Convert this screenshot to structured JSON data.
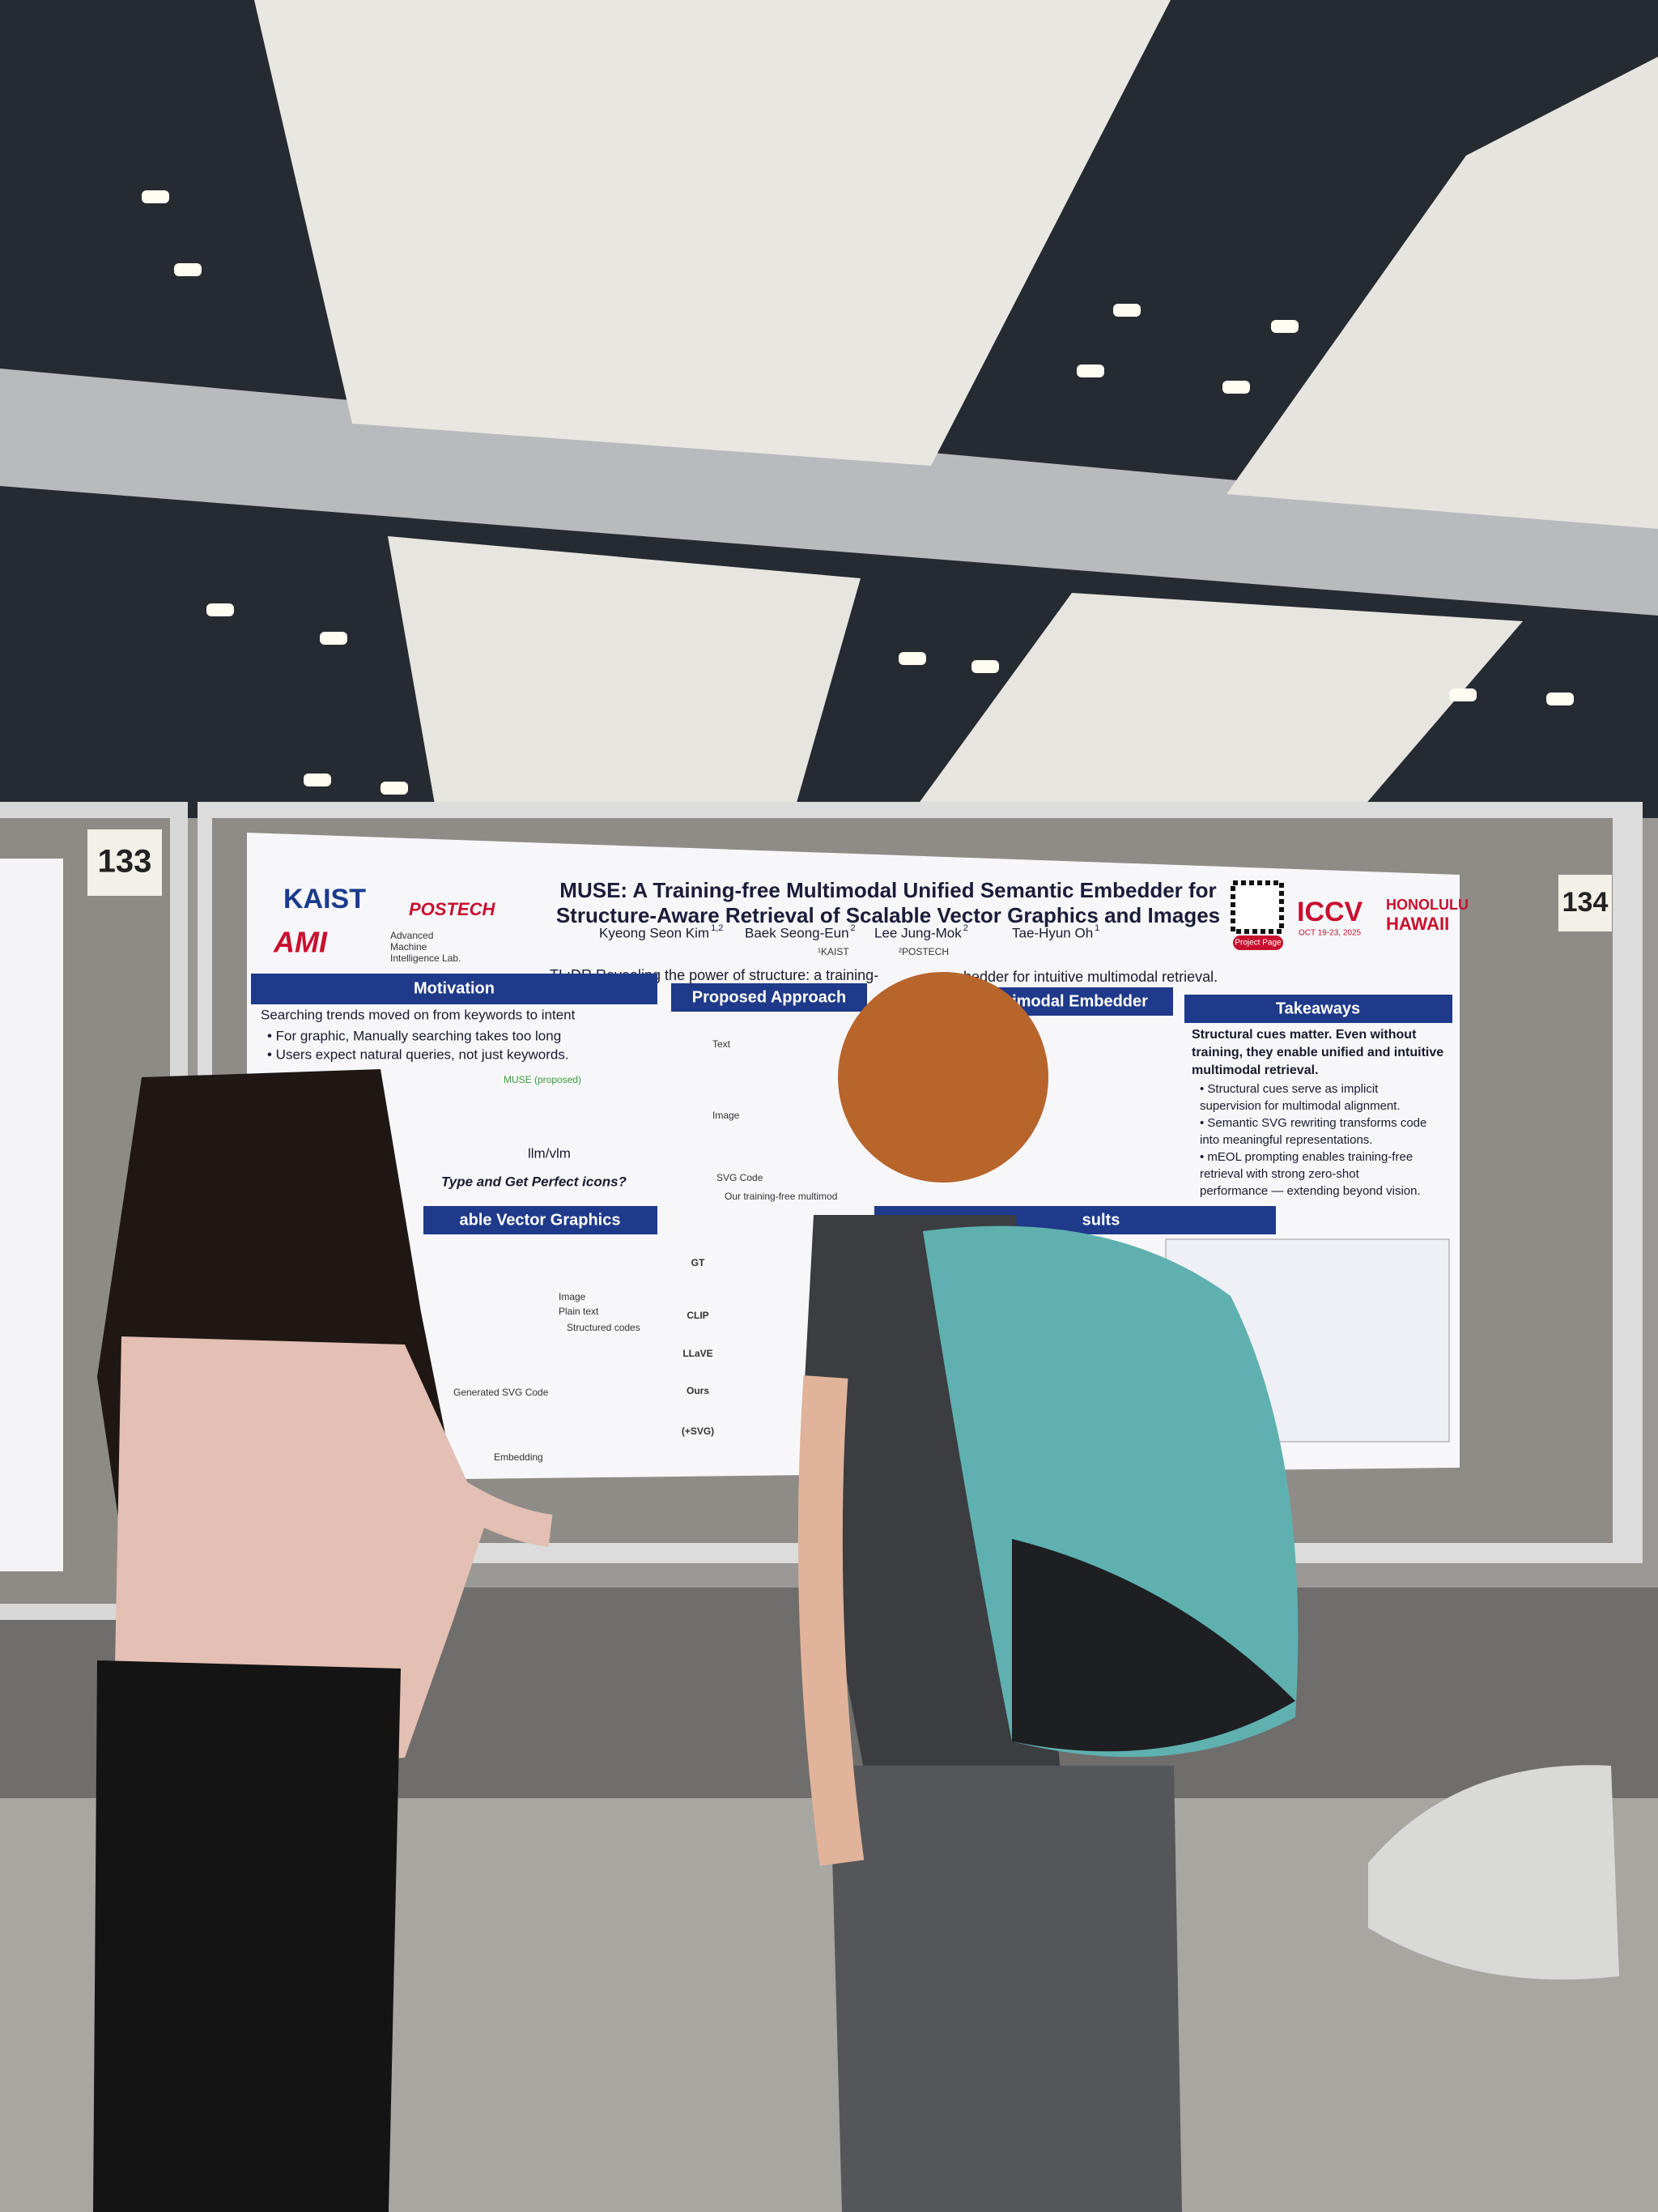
{
  "booth_numbers": [
    "133",
    "134"
  ],
  "poster": {
    "title_lines": [
      "MUSE: A Training-free Multimodal Unified Semantic Embedder for",
      "Structure-Aware Retrieval of Scalable Vector Graphics and Images"
    ],
    "authors": [
      {
        "name": "Kyeong Seon Kim",
        "aff": "1,2"
      },
      {
        "name": "Baek Seong-Eun",
        "aff": "2"
      },
      {
        "name": "Lee Jung-Mok",
        "aff": "2"
      },
      {
        "name": "Tae-Hyun Oh",
        "aff": "1"
      }
    ],
    "affiliations": [
      "¹KAIST",
      "²POSTECH"
    ],
    "logos": {
      "kaist": "KAIST",
      "postech": "POSTECH",
      "ami": "AMI",
      "lab": [
        "Advanced",
        "Machine",
        "Intelligence Lab."
      ]
    },
    "conference": {
      "name": "ICCV",
      "dates": "OCT 19-23, 2025",
      "location": [
        "HONOLULU",
        "HAWAII"
      ],
      "project_page": "Project Page"
    },
    "tldr": [
      "TL;DR Revealing the power of structure: a training-",
      "bedder for intuitive multimodal retrieval."
    ],
    "motivation": {
      "header": "Motivation",
      "lead": "Searching trends moved on from keywords to intent",
      "bullets": [
        "• For graphic, Manually searching takes too long",
        "• Users expect natural queries, not just keywords."
      ],
      "muse": "MUSE (proposed)",
      "model": "llm/vlm",
      "question": "Type and Get Perfect icons?"
    },
    "headers": {
      "approach": "Proposed Approach",
      "embedder": "imodal Embedder",
      "takeaways": "Takeaways",
      "svg": "able Vector Graphics",
      "results": "sults"
    },
    "approach_labels": [
      "Text",
      "Image",
      "SVG Code",
      "Our training-free multimod"
    ],
    "svg_labels": [
      "Image",
      "Plain text",
      "Structured codes",
      "Generated SVG Code",
      "Embedding"
    ],
    "results_rows": [
      "GT",
      "CLIP",
      "LLaVE",
      "Ours",
      "(+SVG)"
    ],
    "takeaways": {
      "lead": [
        "Structural cues matter. Even without",
        "training, they enable unified and intuitive",
        "multimodal retrieval."
      ],
      "bullets": [
        "• Structural cues serve as implicit",
        "  supervision for multimodal alignment.",
        "• Semantic SVG rewriting transforms code",
        "  into meaningful representations.",
        "• mEOL prompting enables training-free",
        "  retrieval with strong zero-shot",
        "  performance — extending beyond vision."
      ]
    }
  }
}
